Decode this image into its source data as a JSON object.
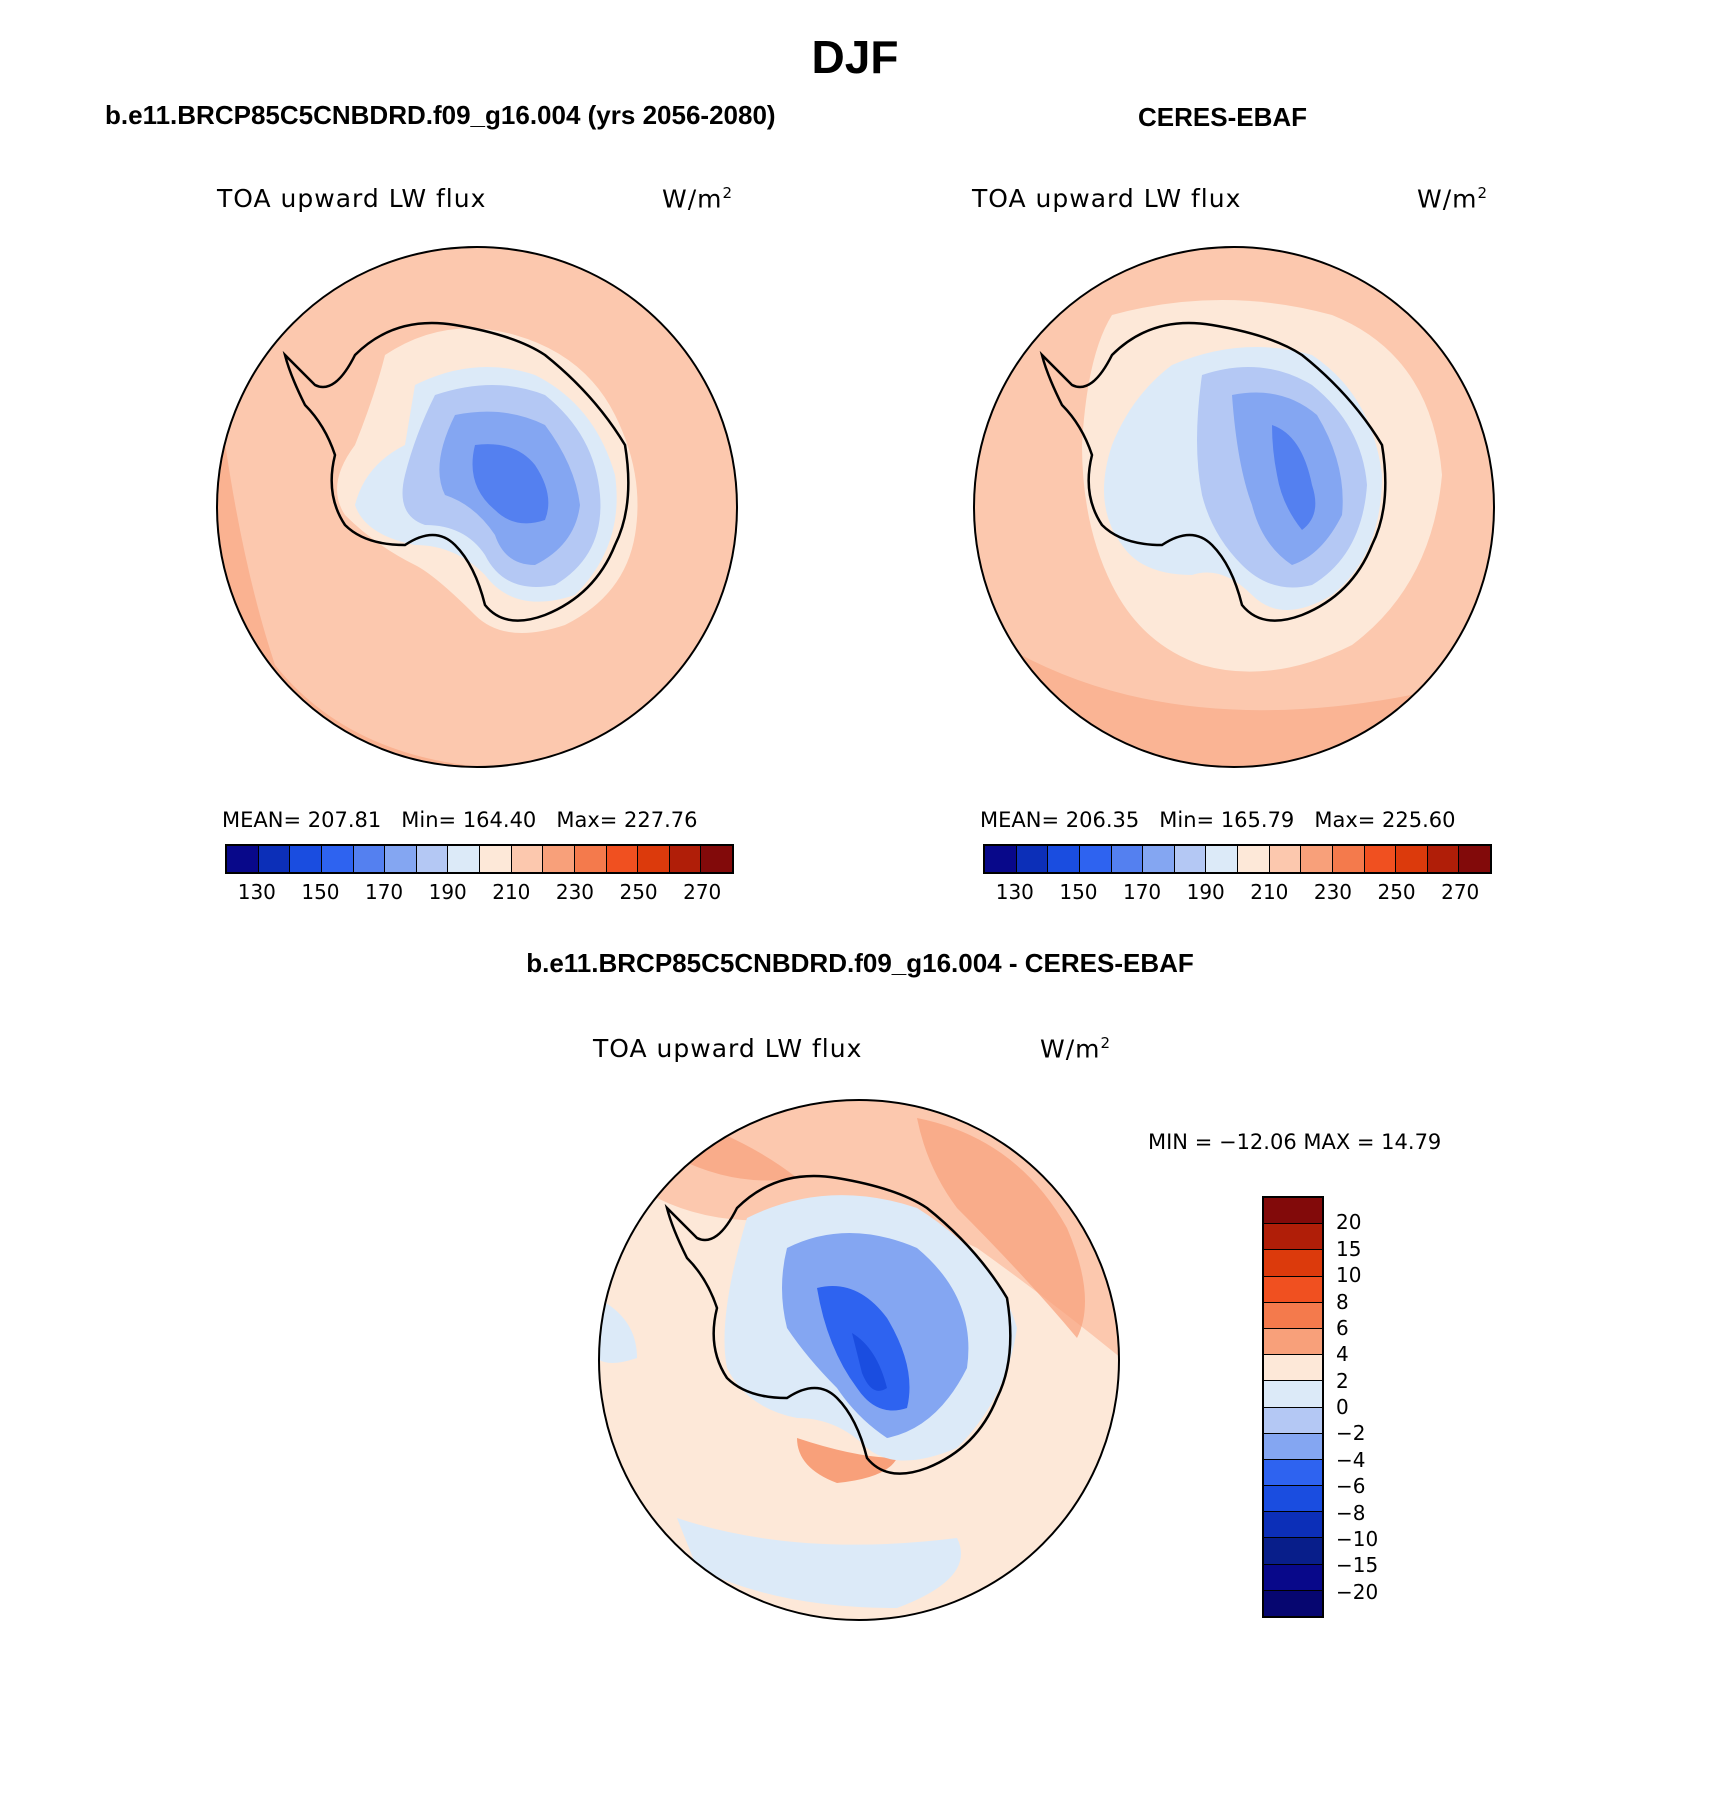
{
  "title": "DJF",
  "panels": [
    {
      "subtitle": "b.e11.BRCP85C5CNBDRD.f09_g16.004 (yrs 2056-2080)",
      "variable": "TOA upward LW flux",
      "units_base": "W/m",
      "units_exp": "2",
      "stats": {
        "mean_label": "MEAN=",
        "mean": "207.81",
        "min_label": "Min=",
        "min": "164.40",
        "max_label": "Max=",
        "max": "227.76"
      }
    },
    {
      "subtitle": "CERES-EBAF",
      "variable": "TOA upward LW flux",
      "units_base": "W/m",
      "units_exp": "2",
      "stats": {
        "mean_label": "MEAN=",
        "mean": "206.35",
        "min_label": "Min=",
        "min": "165.79",
        "max_label": "Max=",
        "max": "225.60"
      }
    },
    {
      "subtitle": "b.e11.BRCP85C5CNBDRD.f09_g16.004 - CERES-EBAF",
      "variable": "TOA upward LW flux",
      "units_base": "W/m",
      "units_exp": "2",
      "stats": {
        "text": "MIN = −12.06 MAX =   14.79"
      }
    }
  ],
  "colorbar_abs": {
    "colors": [
      "#08088a",
      "#0c2fb8",
      "#1a4de0",
      "#2e63f0",
      "#5480f0",
      "#84a6f2",
      "#b4c8f4",
      "#dceaf8",
      "#fde8d8",
      "#fcc8ae",
      "#f8a07a",
      "#f47a4c",
      "#f05020",
      "#dc3a0c",
      "#b01e08",
      "#820a0a"
    ],
    "ticks": [
      "130",
      "150",
      "170",
      "190",
      "210",
      "230",
      "250",
      "270"
    ]
  },
  "colorbar_diff": {
    "colors": [
      "#820a0a",
      "#b01e08",
      "#dc3a0c",
      "#f05020",
      "#f47a4c",
      "#f8a07a",
      "#fde8d8",
      "#dceaf8",
      "#b4c8f4",
      "#84a6f2",
      "#2e63f0",
      "#1a4de0",
      "#0c2fb8",
      "#081e8a",
      "#08088a",
      "#060670"
    ],
    "ticks": [
      "20",
      "15",
      "10",
      "8",
      "6",
      "4",
      "2",
      "0",
      "−2",
      "−4",
      "−6",
      "−8",
      "−10",
      "−15",
      "−20"
    ]
  }
}
